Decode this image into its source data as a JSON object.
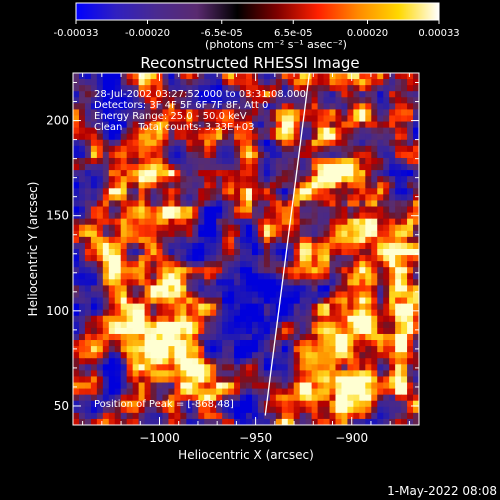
{
  "colorbar": {
    "tick_labels": [
      "-0.00033",
      "-0.00020",
      "-6.5e-05",
      "6.5e-05",
      "0.00020",
      "0.00033"
    ],
    "tick_values": [
      -0.00033,
      -0.0002,
      -6.5e-05,
      6.5e-05,
      0.0002,
      0.00033
    ],
    "range": [
      -0.00033,
      0.00033
    ],
    "units_label": "(photons cm⁻² s⁻¹ asec⁻²)",
    "colors": [
      "#0000ff",
      "#3a1f9e",
      "#4b2a8a",
      "#7a1f4a",
      "#b00000",
      "#ff3000",
      "#ff8000",
      "#ffd000",
      "#ffffff"
    ]
  },
  "chart_data": {
    "type": "heatmap",
    "title": "Reconstructed RHESSI Image",
    "xlabel": "Heliocentric X (arcsec)",
    "ylabel": "Heliocentric Y (arcsec)",
    "xlim": [
      -1045,
      -865
    ],
    "ylim": [
      40,
      225
    ],
    "xticks": [
      -1000,
      -950,
      -900
    ],
    "xtick_labels": [
      "−1000",
      "−950",
      "−900"
    ],
    "yticks": [
      50,
      100,
      150,
      200
    ],
    "ytick_labels": [
      "50",
      "100",
      "150",
      "200"
    ],
    "grid": false,
    "annotations": {
      "time_range": "28-Jul-2002 03:27:52.000 to 03:31:08.000",
      "detectors": "Detectors: 3F 4F 5F 6F 7F 8F, Att 0",
      "energy_range": "Energy Range: 25.0 - 50.0 keV",
      "clean_counts": "Clean     Total counts: 3.33E+03",
      "peak": "Position of Peak = [-868,48]"
    },
    "limb_line": {
      "from": [
        -945,
        45
      ],
      "to": [
        -922,
        225
      ]
    },
    "peak_position": [
      -868,
      48
    ]
  },
  "footer": {
    "date": "1-May-2022 08:08"
  }
}
